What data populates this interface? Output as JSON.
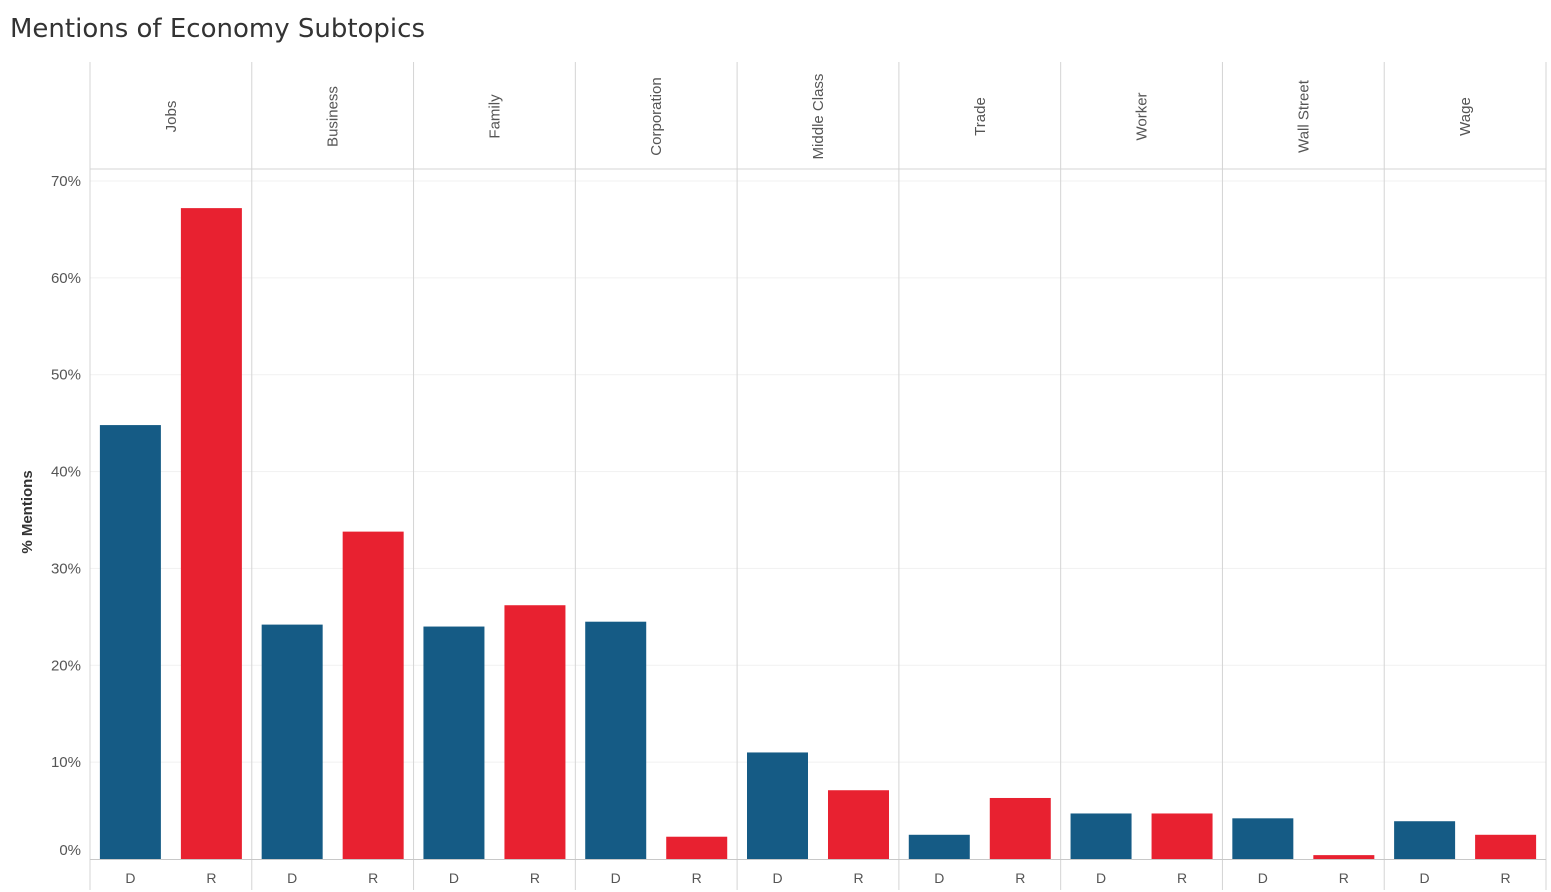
{
  "title": "Mentions of Economy Subtopics",
  "chart_data": {
    "type": "bar",
    "title": "Mentions of Economy Subtopics",
    "ylabel": "% Mentions",
    "xlabel": "",
    "ylim": [
      0,
      70
    ],
    "yticks": [
      0,
      10,
      20,
      30,
      40,
      50,
      60,
      70
    ],
    "ytick_labels": [
      "0%",
      "10%",
      "20%",
      "30%",
      "40%",
      "50%",
      "60%",
      "70%"
    ],
    "categories": [
      "Jobs",
      "Business",
      "Family",
      "Corporation",
      "Middle Class",
      "Trade",
      "Worker",
      "Wall Street",
      "Wage"
    ],
    "parties": [
      "D",
      "R"
    ],
    "series": [
      {
        "name": "D",
        "color": "#155b85",
        "values": [
          44.8,
          24.2,
          24.0,
          24.5,
          11.0,
          2.5,
          4.7,
          4.2,
          3.9
        ]
      },
      {
        "name": "R",
        "color": "#e82130",
        "values": [
          67.2,
          33.8,
          26.2,
          2.3,
          7.1,
          6.3,
          4.7,
          0.4,
          2.5
        ]
      }
    ],
    "grid": true,
    "legend": "none"
  }
}
